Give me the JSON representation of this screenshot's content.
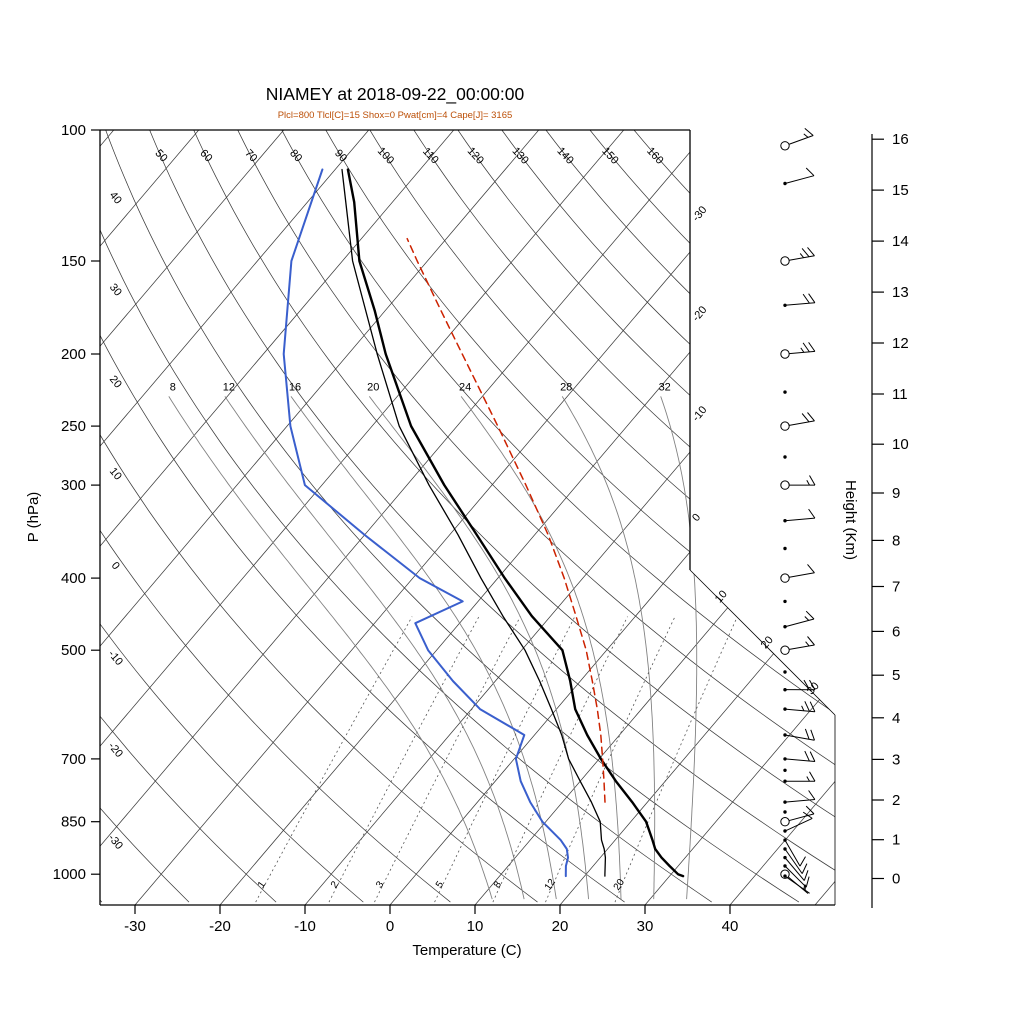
{
  "title": "NIAMEY at 2018-09-22_00:00:00",
  "subtitle": "Plcl=800 Tlcl[C]=15 Shox=0 Pwat[cm]=4 Cape[J]= 3165",
  "colors": {
    "temperature": "#000000",
    "wet_bulb": "#000000",
    "dewpoint": "#3a5fcd",
    "parcel": "#cc2200",
    "subtitle": "#bc4f07",
    "background_line": "#3c3c3c",
    "moist_line": "#828282",
    "mixratio_line": "#555555",
    "frame": "#000000"
  },
  "axes": {
    "pressure": {
      "label": "P (hPa)",
      "ticks": [
        "100",
        "150",
        "200",
        "250",
        "300",
        "400",
        "500",
        "700",
        "850",
        "1000"
      ]
    },
    "temperature": {
      "label": "Temperature (C)",
      "ticks": [
        "-30",
        "-20",
        "-10",
        "0",
        "10",
        "20",
        "30",
        "40"
      ]
    },
    "height": {
      "label": "Height (Km)",
      "ticks": [
        "0",
        "1",
        "2",
        "3",
        "4",
        "5",
        "6",
        "7",
        "8",
        "9",
        "10",
        "11",
        "12",
        "13",
        "14",
        "15",
        "16"
      ]
    }
  },
  "background_labels": {
    "dry_adiabats_top": [
      "50",
      "60",
      "70",
      "80",
      "90",
      "100",
      "110",
      "120",
      "130",
      "140",
      "150",
      "160"
    ],
    "dry_adiabats_left": [
      "40",
      "30",
      "20",
      "10",
      "0",
      "-10",
      "-20",
      "-30"
    ],
    "isotherms_right_edge": [
      "-30",
      "-20",
      "-10",
      "0"
    ],
    "isotherms_diagonal": [
      "10",
      "20",
      "30"
    ],
    "moist_adiabats": [
      "8",
      "12",
      "16",
      "20",
      "24",
      "28",
      "32"
    ],
    "mixing_ratios": [
      "1",
      "2",
      "3",
      "5",
      "8",
      "12",
      "20"
    ]
  },
  "chart_data": {
    "type": "line",
    "variant": "skew-t-log-p-sounding",
    "station": "NIAMEY",
    "datetime": "2018-09-22_00:00:00",
    "indices": {
      "Plcl": 800,
      "Tlcl_C": 15,
      "Shox": 0,
      "Pwat_cm": 4,
      "Cape_J": 3165
    },
    "pressure_range_hPa": [
      100,
      1100
    ],
    "temperature_axis_C": [
      -30,
      40
    ],
    "height_axis_km": [
      0,
      16
    ],
    "series": [
      {
        "name": "temperature",
        "color_key": "temperature",
        "style": "solid",
        "width": 2.4,
        "points": [
          [
            1006,
            31.6
          ],
          [
            1000,
            30.8
          ],
          [
            975,
            29.0
          ],
          [
            950,
            27.2
          ],
          [
            925,
            25.6
          ],
          [
            900,
            24.4
          ],
          [
            850,
            21.8
          ],
          [
            800,
            18.2
          ],
          [
            750,
            14.2
          ],
          [
            700,
            10.2
          ],
          [
            650,
            6.2
          ],
          [
            600,
            2.2
          ],
          [
            550,
            -1.2
          ],
          [
            500,
            -5.2
          ],
          [
            450,
            -12.2
          ],
          [
            400,
            -19.2
          ],
          [
            350,
            -26.8
          ],
          [
            300,
            -35.6
          ],
          [
            250,
            -45.4
          ],
          [
            200,
            -55.6
          ],
          [
            175,
            -61.2
          ],
          [
            150,
            -68.0
          ],
          [
            125,
            -74.5
          ],
          [
            113,
            -78.5
          ]
        ]
      },
      {
        "name": "wet_bulb",
        "color_key": "wet_bulb",
        "style": "solid",
        "width": 1.3,
        "points": [
          [
            1006,
            22.4
          ],
          [
            1000,
            22.2
          ],
          [
            950,
            20.6
          ],
          [
            925,
            19.6
          ],
          [
            900,
            18.4
          ],
          [
            850,
            16.4
          ],
          [
            800,
            13.4
          ],
          [
            750,
            10.0
          ],
          [
            700,
            6.4
          ],
          [
            650,
            3.2
          ],
          [
            600,
            -0.6
          ],
          [
            550,
            -4.8
          ],
          [
            500,
            -9.6
          ],
          [
            450,
            -15.6
          ],
          [
            400,
            -22.0
          ],
          [
            350,
            -29.0
          ],
          [
            300,
            -37.4
          ],
          [
            250,
            -46.8
          ],
          [
            200,
            -56.6
          ],
          [
            150,
            -68.8
          ],
          [
            113,
            -79.2
          ]
        ]
      },
      {
        "name": "dewpoint",
        "color_key": "dewpoint",
        "style": "solid",
        "width": 2.0,
        "points": [
          [
            1006,
            17.8
          ],
          [
            1000,
            17.6
          ],
          [
            975,
            16.8
          ],
          [
            950,
            16.2
          ],
          [
            925,
            15.2
          ],
          [
            900,
            13.6
          ],
          [
            850,
            9.6
          ],
          [
            800,
            6.2
          ],
          [
            750,
            3.0
          ],
          [
            700,
            0.2
          ],
          [
            650,
            -1.2
          ],
          [
            600,
            -9.0
          ],
          [
            550,
            -15.0
          ],
          [
            500,
            -21.0
          ],
          [
            460,
            -25.2
          ],
          [
            430,
            -21.8
          ],
          [
            400,
            -29.2
          ],
          [
            350,
            -40.0
          ],
          [
            300,
            -52.0
          ],
          [
            250,
            -59.6
          ],
          [
            200,
            -67.6
          ],
          [
            150,
            -76.0
          ],
          [
            113,
            -81.5
          ]
        ]
      },
      {
        "name": "parcel",
        "color_key": "parcel",
        "style": "dashed",
        "width": 1.5,
        "points": [
          [
            800,
            15.0
          ],
          [
            750,
            12.8
          ],
          [
            700,
            10.4
          ],
          [
            650,
            7.8
          ],
          [
            600,
            4.8
          ],
          [
            550,
            1.4
          ],
          [
            500,
            -2.4
          ],
          [
            450,
            -7.0
          ],
          [
            400,
            -12.2
          ],
          [
            350,
            -18.4
          ],
          [
            300,
            -26.0
          ],
          [
            250,
            -35.2
          ],
          [
            200,
            -46.6
          ],
          [
            175,
            -53.4
          ],
          [
            150,
            -61.2
          ],
          [
            140,
            -64.6
          ]
        ]
      }
    ],
    "wind_barbs_kt": [
      {
        "p": 105,
        "spd": 15,
        "dir": 70,
        "circle": true,
        "barb": true
      },
      {
        "p": 118,
        "spd": 8,
        "dir": 75,
        "circle": false,
        "barb": true
      },
      {
        "p": 150,
        "spd": 25,
        "dir": 80,
        "circle": true,
        "barb": true
      },
      {
        "p": 172,
        "spd": 20,
        "dir": 85,
        "circle": false,
        "barb": true
      },
      {
        "p": 200,
        "spd": 25,
        "dir": 85,
        "circle": true,
        "barb": true
      },
      {
        "p": 225,
        "spd": 15,
        "dir": 90,
        "circle": false,
        "barb": false
      },
      {
        "p": 250,
        "spd": 20,
        "dir": 80,
        "circle": true,
        "barb": true
      },
      {
        "p": 275,
        "spd": 10,
        "dir": 85,
        "circle": false,
        "barb": false
      },
      {
        "p": 300,
        "spd": 15,
        "dir": 90,
        "circle": true,
        "barb": true
      },
      {
        "p": 335,
        "spd": 10,
        "dir": 85,
        "circle": false,
        "barb": true
      },
      {
        "p": 365,
        "spd": 5,
        "dir": 80,
        "circle": false,
        "barb": false
      },
      {
        "p": 400,
        "spd": 10,
        "dir": 80,
        "circle": true,
        "barb": true
      },
      {
        "p": 430,
        "spd": 8,
        "dir": 75,
        "circle": false,
        "barb": false
      },
      {
        "p": 465,
        "spd": 15,
        "dir": 75,
        "circle": false,
        "barb": true
      },
      {
        "p": 500,
        "spd": 15,
        "dir": 80,
        "circle": true,
        "barb": true
      },
      {
        "p": 535,
        "spd": 10,
        "dir": 85,
        "circle": false,
        "barb": false
      },
      {
        "p": 565,
        "spd": 18,
        "dir": 90,
        "circle": false,
        "barb": true
      },
      {
        "p": 600,
        "spd": 25,
        "dir": 95,
        "circle": false,
        "barb": true
      },
      {
        "p": 650,
        "spd": 22,
        "dir": 100,
        "circle": false,
        "barb": true
      },
      {
        "p": 700,
        "spd": 18,
        "dir": 95,
        "circle": false,
        "barb": true
      },
      {
        "p": 725,
        "spd": 15,
        "dir": 95,
        "circle": false,
        "barb": false
      },
      {
        "p": 750,
        "spd": 15,
        "dir": 90,
        "circle": false,
        "barb": true
      },
      {
        "p": 800,
        "spd": 12,
        "dir": 85,
        "circle": false,
        "barb": true
      },
      {
        "p": 825,
        "spd": 10,
        "dir": 80,
        "circle": false,
        "barb": false
      },
      {
        "p": 850,
        "spd": 10,
        "dir": 75,
        "circle": true,
        "barb": true
      },
      {
        "p": 875,
        "spd": 8,
        "dir": 65,
        "circle": false,
        "barb": true
      },
      {
        "p": 900,
        "spd": 8,
        "dir": 150,
        "circle": false,
        "barb": true
      },
      {
        "p": 925,
        "spd": 10,
        "dir": 145,
        "circle": false,
        "barb": true
      },
      {
        "p": 950,
        "spd": 10,
        "dir": 140,
        "circle": false,
        "barb": true
      },
      {
        "p": 975,
        "spd": 8,
        "dir": 135,
        "circle": false,
        "barb": true
      },
      {
        "p": 1000,
        "spd": 6,
        "dir": 130,
        "circle": true,
        "barb": true
      },
      {
        "p": 1006,
        "spd": 5,
        "dir": 125,
        "circle": false,
        "barb": true
      }
    ]
  }
}
